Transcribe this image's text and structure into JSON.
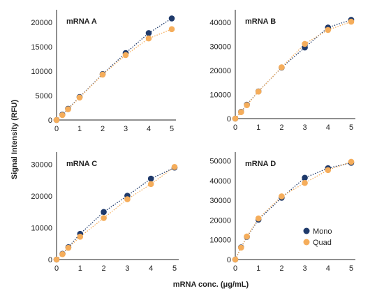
{
  "figure": {
    "ylabel": "Signal Intensity (RFU)",
    "xlabel": "mRNA conc. (μg/mL)"
  },
  "legend": {
    "items": [
      {
        "name": "Mono",
        "color": "#1f3a6b"
      },
      {
        "name": "Quad",
        "color": "#f5ad5b"
      }
    ]
  },
  "chart_data": [
    {
      "type": "scatter",
      "title": "mRNA A",
      "xlim": [
        0,
        5
      ],
      "ylim": [
        0,
        22000
      ],
      "xticks": [
        0,
        1,
        2,
        3,
        4,
        5
      ],
      "yticks": [
        0,
        5000,
        10000,
        15000,
        20000
      ],
      "trendline": "dotted",
      "series": [
        {
          "name": "Mono",
          "color": "#1f3a6b",
          "x": [
            0,
            0.25,
            0.5,
            1,
            2,
            3,
            4,
            5
          ],
          "y": [
            0,
            1100,
            2300,
            4700,
            9400,
            13700,
            17800,
            20800
          ]
        },
        {
          "name": "Quad",
          "color": "#f5ad5b",
          "x": [
            0,
            0.25,
            0.5,
            1,
            2,
            3,
            4,
            5
          ],
          "y": [
            0,
            1000,
            2200,
            4600,
            9300,
            13300,
            16700,
            18600
          ]
        }
      ]
    },
    {
      "type": "scatter",
      "title": "mRNA B",
      "xlim": [
        0,
        5
      ],
      "ylim": [
        0,
        44000
      ],
      "xticks": [
        0,
        1,
        2,
        3,
        4,
        5
      ],
      "yticks": [
        0,
        10000,
        20000,
        30000,
        40000
      ],
      "trendline": "dotted",
      "series": [
        {
          "name": "Mono",
          "color": "#1f3a6b",
          "x": [
            0,
            0.25,
            0.5,
            1,
            2,
            3,
            4,
            5
          ],
          "y": [
            0,
            2800,
            5800,
            11300,
            21200,
            29500,
            37800,
            41000
          ]
        },
        {
          "name": "Quad",
          "color": "#f5ad5b",
          "x": [
            0,
            0.25,
            0.5,
            1,
            2,
            3,
            4,
            5
          ],
          "y": [
            0,
            2700,
            5600,
            11200,
            21300,
            31000,
            36800,
            40200
          ]
        }
      ]
    },
    {
      "type": "scatter",
      "title": "mRNA C",
      "xlim": [
        0,
        5
      ],
      "ylim": [
        0,
        33000
      ],
      "xticks": [
        0,
        1,
        2,
        3,
        4,
        5
      ],
      "yticks": [
        0,
        10000,
        20000,
        30000
      ],
      "trendline": "dotted",
      "series": [
        {
          "name": "Mono",
          "color": "#1f3a6b",
          "x": [
            0,
            0.25,
            0.5,
            1,
            2,
            3,
            4,
            5
          ],
          "y": [
            0,
            1800,
            3900,
            8100,
            15000,
            20100,
            25500,
            29000
          ]
        },
        {
          "name": "Quad",
          "color": "#f5ad5b",
          "x": [
            0,
            0.25,
            0.5,
            1,
            2,
            3,
            4,
            5
          ],
          "y": [
            0,
            1700,
            3700,
            7200,
            13100,
            19000,
            23800,
            29200
          ]
        }
      ]
    },
    {
      "type": "scatter",
      "title": "mRNA D",
      "xlim": [
        0,
        5
      ],
      "ylim": [
        0,
        53000
      ],
      "xticks": [
        0,
        1,
        2,
        3,
        4,
        5
      ],
      "yticks": [
        0,
        10000,
        20000,
        30000,
        40000,
        50000
      ],
      "trendline": "dotted",
      "series": [
        {
          "name": "Mono",
          "color": "#1f3a6b",
          "x": [
            0,
            0.25,
            0.5,
            1,
            2,
            3,
            4,
            5
          ],
          "y": [
            0,
            6200,
            11500,
            20200,
            31300,
            41400,
            46300,
            49000
          ]
        },
        {
          "name": "Quad",
          "color": "#f5ad5b",
          "x": [
            0,
            0.25,
            0.5,
            1,
            2,
            3,
            4,
            5
          ],
          "y": [
            0,
            6000,
            11700,
            20800,
            32000,
            38800,
            45300,
            49500
          ]
        }
      ]
    }
  ]
}
